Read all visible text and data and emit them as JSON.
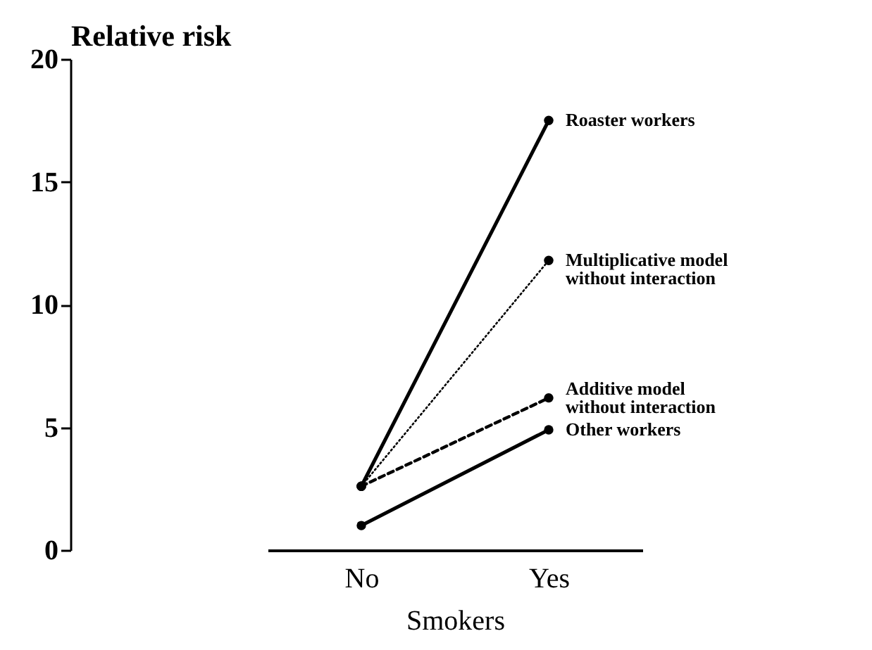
{
  "chart_data": {
    "type": "line",
    "xlabel": "Smokers",
    "ylabel": "Relative risk",
    "categories": [
      "No",
      "Yes"
    ],
    "series": [
      {
        "name": "Roaster workers",
        "color": "#000000",
        "values": [
          2.6,
          17.5
        ],
        "line_style": "solid"
      },
      {
        "name": "Multiplicative model\nwithout interaction",
        "color": "#000000",
        "values": [
          2.6,
          11.8
        ],
        "line_style": "dotted"
      },
      {
        "name": "Additive model\nwithout interaction",
        "color": "#000000",
        "values": [
          2.6,
          6.2
        ],
        "line_style": "dashed"
      },
      {
        "name": "Other workers",
        "color": "#000000",
        "values": [
          1.0,
          4.9
        ],
        "line_style": "solid"
      }
    ],
    "ylim": [
      0,
      20
    ],
    "yticks": [
      0,
      5,
      10,
      15,
      20
    ],
    "marker": "circle",
    "grid": false,
    "legend": "right"
  }
}
